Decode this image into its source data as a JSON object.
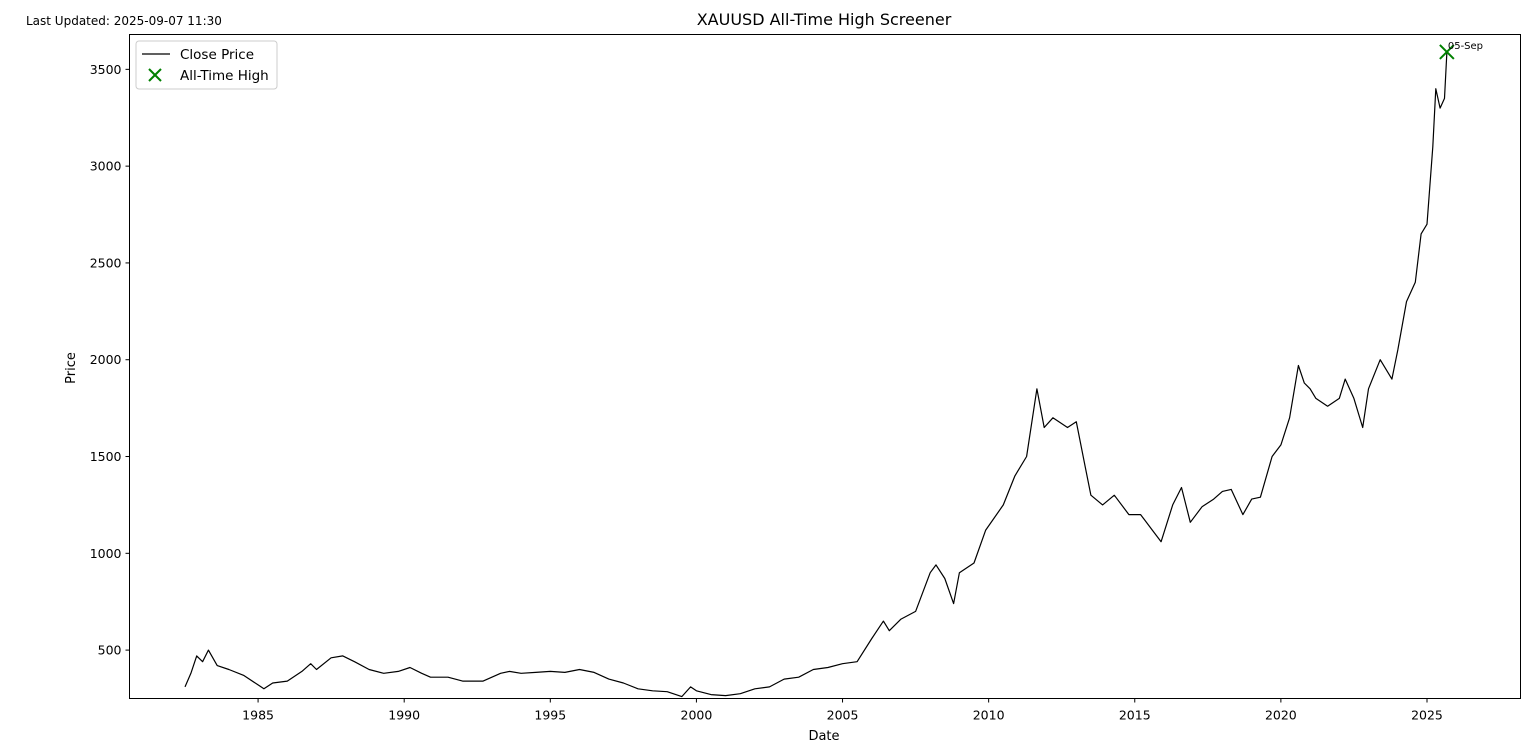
{
  "header": {
    "last_updated": "Last Updated: 2025-09-07 11:30"
  },
  "chart_data": {
    "type": "line",
    "title": "XAUUSD All-Time High Screener",
    "xlabel": "Date",
    "ylabel": "Price",
    "xlim": [
      1980.6,
      2028.2
    ],
    "ylim": [
      250,
      3680
    ],
    "xticks": [
      {
        "value": 1985,
        "label": "1985"
      },
      {
        "value": 1990,
        "label": "1990"
      },
      {
        "value": 1995,
        "label": "1995"
      },
      {
        "value": 2000,
        "label": "2000"
      },
      {
        "value": 2005,
        "label": "2005"
      },
      {
        "value": 2010,
        "label": "2010"
      },
      {
        "value": 2015,
        "label": "2015"
      },
      {
        "value": 2020,
        "label": "2020"
      },
      {
        "value": 2025,
        "label": "2025"
      }
    ],
    "yticks": [
      {
        "value": 500,
        "label": "500"
      },
      {
        "value": 1000,
        "label": "1000"
      },
      {
        "value": 1500,
        "label": "1500"
      },
      {
        "value": 2000,
        "label": "2000"
      },
      {
        "value": 2500,
        "label": "2500"
      },
      {
        "value": 3000,
        "label": "3000"
      },
      {
        "value": 3500,
        "label": "3500"
      }
    ],
    "legend": {
      "placement": "upper-left",
      "entries": [
        {
          "label": "Close Price",
          "marker": "line",
          "color": "#000000"
        },
        {
          "label": "All-Time High",
          "marker": "x",
          "color": "#008000"
        }
      ]
    },
    "grid": false,
    "series": [
      {
        "name": "Close Price",
        "color": "#000000",
        "x": [
          1982.5,
          1982.7,
          1982.9,
          1983.1,
          1983.3,
          1983.6,
          1984.0,
          1984.5,
          1985.0,
          1985.2,
          1985.5,
          1986.0,
          1986.5,
          1986.8,
          1987.0,
          1987.5,
          1987.9,
          1988.3,
          1988.8,
          1989.3,
          1989.8,
          1990.2,
          1990.6,
          1990.9,
          1991.5,
          1992.0,
          1992.7,
          1993.3,
          1993.6,
          1994.0,
          1994.5,
          1995.0,
          1995.5,
          1996.0,
          1996.5,
          1997.0,
          1997.5,
          1998.0,
          1998.5,
          1999.0,
          1999.5,
          1999.8,
          2000.0,
          2000.5,
          2001.0,
          2001.5,
          2002.0,
          2002.5,
          2003.0,
          2003.5,
          2004.0,
          2004.5,
          2005.0,
          2005.5,
          2006.0,
          2006.4,
          2006.6,
          2007.0,
          2007.5,
          2008.0,
          2008.2,
          2008.5,
          2008.8,
          2009.0,
          2009.5,
          2009.9,
          2010.5,
          2010.9,
          2011.3,
          2011.65,
          2011.9,
          2012.2,
          2012.7,
          2013.0,
          2013.3,
          2013.5,
          2013.9,
          2014.3,
          2014.8,
          2015.2,
          2015.6,
          2015.9,
          2016.3,
          2016.6,
          2016.9,
          2017.3,
          2017.7,
          2018.0,
          2018.3,
          2018.7,
          2019.0,
          2019.3,
          2019.7,
          2020.0,
          2020.3,
          2020.6,
          2020.8,
          2021.0,
          2021.2,
          2021.6,
          2022.0,
          2022.2,
          2022.5,
          2022.8,
          2023.0,
          2023.4,
          2023.8,
          2024.0,
          2024.3,
          2024.6,
          2024.8,
          2025.0,
          2025.2,
          2025.3,
          2025.45,
          2025.6,
          2025.68
        ],
        "y": [
          310,
          380,
          470,
          440,
          500,
          420,
          400,
          370,
          320,
          300,
          330,
          340,
          390,
          430,
          400,
          460,
          470,
          440,
          400,
          380,
          390,
          410,
          380,
          360,
          360,
          340,
          340,
          380,
          390,
          380,
          385,
          390,
          385,
          400,
          385,
          350,
          330,
          300,
          290,
          285,
          260,
          310,
          290,
          270,
          265,
          275,
          300,
          310,
          350,
          360,
          400,
          410,
          430,
          440,
          560,
          650,
          600,
          660,
          700,
          900,
          940,
          870,
          740,
          900,
          950,
          1120,
          1250,
          1400,
          1500,
          1850,
          1650,
          1700,
          1650,
          1680,
          1450,
          1300,
          1250,
          1300,
          1200,
          1200,
          1120,
          1060,
          1250,
          1340,
          1160,
          1240,
          1280,
          1320,
          1330,
          1200,
          1280,
          1290,
          1500,
          1560,
          1700,
          1970,
          1880,
          1850,
          1800,
          1760,
          1800,
          1900,
          1800,
          1650,
          1850,
          2000,
          1900,
          2050,
          2300,
          2400,
          2650,
          2700,
          3100,
          3400,
          3300,
          3350,
          3590
        ]
      }
    ],
    "annotations": [
      {
        "x": 2025.68,
        "y": 3590,
        "marker": "x",
        "color": "#008000",
        "label": "05-Sep",
        "series": "All-Time High"
      }
    ]
  }
}
